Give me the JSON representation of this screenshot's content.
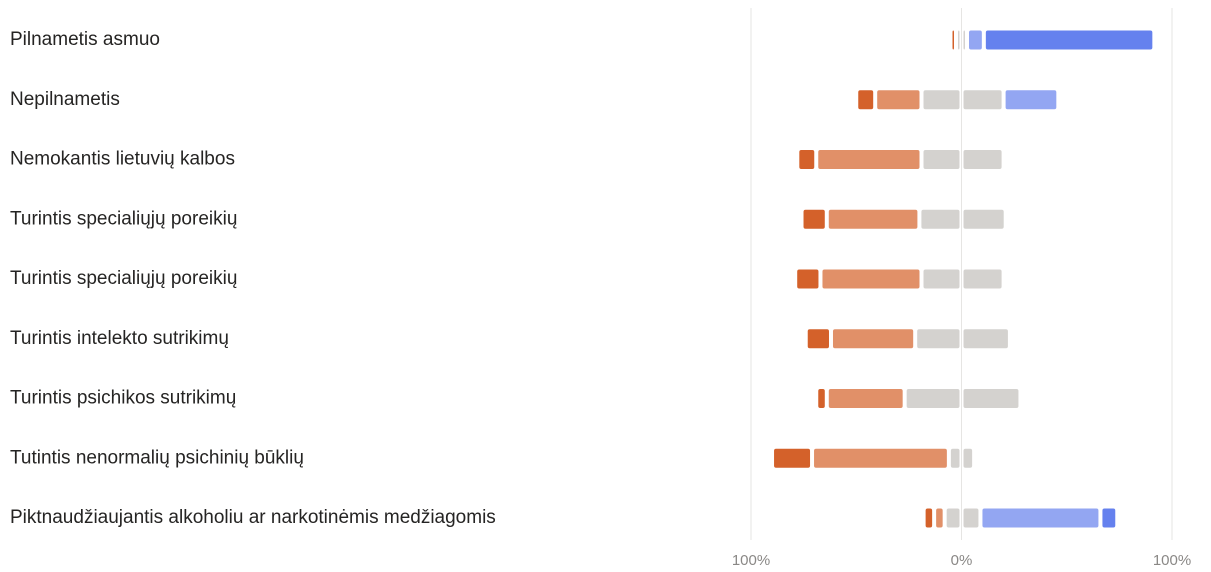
{
  "chart_data": {
    "type": "bar",
    "subtype": "diverging-stacked",
    "orientation": "horizontal",
    "title": "",
    "xlabel": "",
    "ylabel": "",
    "xlim": [
      -100,
      100
    ],
    "ticks": [
      {
        "value": -100,
        "label": "100%"
      },
      {
        "value": 0,
        "label": "0%"
      },
      {
        "value": 100,
        "label": "100%"
      }
    ],
    "grid": true,
    "legend": "none",
    "colors": [
      "#d4612a",
      "#e19068",
      "#d4d2cf",
      "#d4d2cf",
      "#93a6f2",
      "#6581ee"
    ],
    "categories": [
      "Pilnametis asmuo",
      "Nepilnametis",
      "Nemokantis lietuvių kalbos",
      "Turintis specialiųjų poreikių",
      "Turintis specialiųjų poreikių",
      "Turintis intelekto sutrikimų",
      "Turintis psichikos sutrikimų",
      "Tutintis nenormalių psichinių būklių",
      "Piktnaudžiaujantis alkoholiu ar narkotinėmis medžiagomis"
    ],
    "series": [
      {
        "values": [
          1.5,
          9,
          9,
          12,
          12,
          12,
          5,
          19,
          5
        ]
      },
      {
        "values": [
          0,
          22,
          50,
          44,
          48,
          40,
          37,
          65,
          5
        ]
      },
      {
        "values": [
          2,
          19,
          19,
          20,
          19,
          22,
          27,
          6,
          8
        ]
      },
      {
        "values": [
          2,
          20,
          20,
          21,
          20,
          23,
          28,
          6,
          9
        ]
      },
      {
        "values": [
          8,
          26,
          0,
          0,
          0,
          0,
          0,
          0,
          57
        ]
      },
      {
        "values": [
          81,
          0,
          0,
          0,
          0,
          0,
          0,
          0,
          8
        ]
      }
    ]
  }
}
